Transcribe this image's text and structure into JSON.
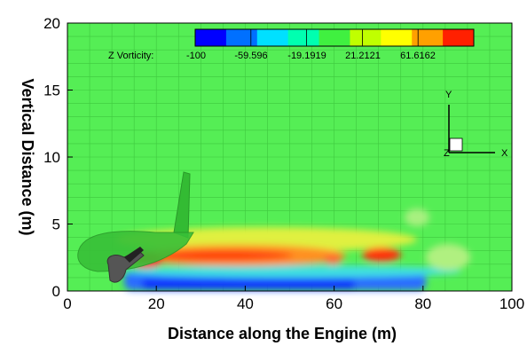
{
  "chart_data": {
    "type": "heatmap",
    "xlabel": "Distance along the Engine (m)",
    "ylabel": "Vertical Distance (m)",
    "xlim": [
      0,
      100
    ],
    "ylim": [
      0,
      20
    ],
    "x_ticks": [
      "0",
      "20",
      "40",
      "60",
      "80",
      "100"
    ],
    "y_ticks": [
      "0",
      "5",
      "10",
      "15",
      "20"
    ],
    "grid": true,
    "colorbar": {
      "title": "Z Vorticity:",
      "tick_labels": [
        "-100",
        "-59.596",
        "-19.1919",
        "21.2121",
        "61.6162"
      ],
      "colors": [
        "#0000ff",
        "#0070ff",
        "#00e0ff",
        "#00ffb0",
        "#40f040",
        "#c0ff00",
        "#ffff00",
        "#ffa000",
        "#ff2000"
      ]
    },
    "background_value_color": "#55ee55",
    "triad": {
      "x": "X",
      "y": "Y",
      "z": "Z"
    }
  }
}
